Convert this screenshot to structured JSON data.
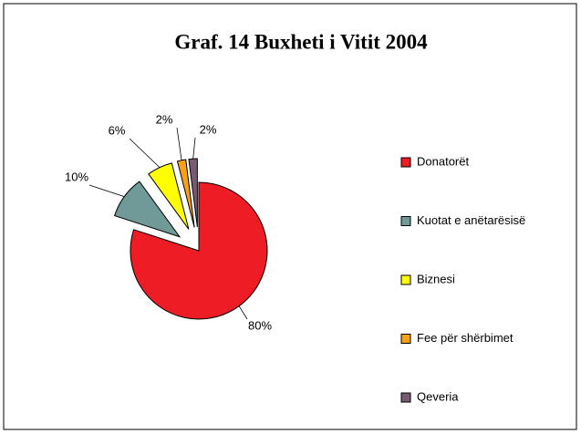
{
  "chart_data": {
    "type": "pie",
    "title": "Graf. 14  Buxheti i Vitit 2004",
    "categories": [
      "Donatorët",
      "Kuotat e anëtarësisë",
      "Biznesi",
      "Fee për shërbimet",
      "Qeveria"
    ],
    "values": [
      80,
      10,
      6,
      2,
      2
    ],
    "value_labels": [
      "80%",
      "10%",
      "6%",
      "2%",
      "2%"
    ],
    "colors": [
      "#ee1c24",
      "#6f9a98",
      "#ffff00",
      "#f7a11a",
      "#7a5a72"
    ],
    "legend": "right"
  }
}
